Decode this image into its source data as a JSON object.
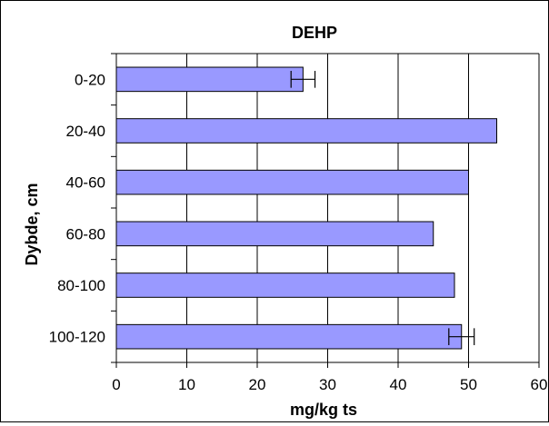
{
  "chart_data": {
    "type": "bar",
    "orientation": "horizontal",
    "title": "DEHP",
    "xlabel": "mg/kg ts",
    "ylabel": "Dybde, cm",
    "categories": [
      "0-20",
      "20-40",
      "40-60",
      "60-80",
      "80-100",
      "100-120"
    ],
    "values": [
      26.5,
      54,
      50,
      45,
      48,
      49
    ],
    "error": [
      1.7,
      null,
      null,
      null,
      null,
      1.8
    ],
    "xlim": [
      0,
      60
    ],
    "xticks": [
      "0",
      "10",
      "20",
      "30",
      "40",
      "50",
      "60"
    ],
    "grid": "vertical",
    "legend": "none",
    "bar_color": "#9999ff",
    "bar_edge_color": "#000000"
  }
}
